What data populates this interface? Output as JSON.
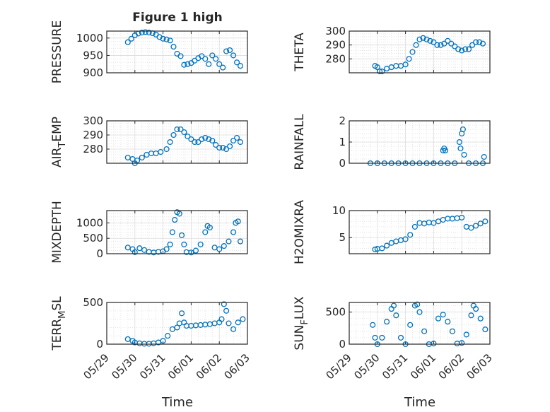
{
  "figure_title": "Figure 1 high",
  "colors": {
    "marker": "#0072BD",
    "axis": "#262626",
    "grid": "#dcdcdc"
  },
  "x_axis": {
    "label": "Time",
    "range": [
      "05/29",
      "06/03"
    ],
    "tick_labels": [
      "05/29",
      "05/30",
      "05/31",
      "06/01",
      "06/02",
      "06/03"
    ]
  },
  "chart_data": [
    {
      "type": "scatter",
      "ylabel": "PRESSURE",
      "ylim": [
        900,
        1020
      ],
      "yticks": [
        900,
        950,
        1000
      ],
      "grid": true,
      "x": [
        "05/29 18:00",
        "05/29 21:00",
        "05/30 00:00",
        "05/30 03:00",
        "05/30 06:00",
        "05/30 09:00",
        "05/30 12:00",
        "05/30 15:00",
        "05/30 18:00",
        "05/30 21:00",
        "05/31 00:00",
        "05/31 03:00",
        "05/31 06:00",
        "05/31 09:00",
        "05/31 12:00",
        "05/31 15:00",
        "05/31 18:00",
        "05/31 21:00",
        "06/01 00:00",
        "06/01 03:00",
        "06/01 06:00",
        "06/01 09:00",
        "06/01 12:00",
        "06/01 15:00",
        "06/01 18:00",
        "06/01 21:00",
        "06/02 00:00",
        "06/02 03:00",
        "06/02 06:00",
        "06/02 09:00",
        "06/02 12:00",
        "06/02 15:00",
        "06/02 18:00"
      ],
      "y": [
        988,
        998,
        1008,
        1013,
        1016,
        1017,
        1016,
        1014,
        1010,
        1003,
        998,
        996,
        993,
        975,
        955,
        948,
        923,
        925,
        928,
        935,
        942,
        948,
        940,
        925,
        950,
        940,
        925,
        915,
        962,
        965,
        950,
        930,
        920
      ]
    },
    {
      "type": "scatter",
      "ylabel": "THETA",
      "ylim": [
        270,
        300
      ],
      "yticks": [
        280,
        290,
        300
      ],
      "grid": true,
      "x": [
        "05/29 22:00",
        "05/30 00:00",
        "05/30 02:00",
        "05/30 04:00",
        "05/30 08:00",
        "05/30 12:00",
        "05/30 16:00",
        "05/30 20:00",
        "05/31 00:00",
        "05/31 03:00",
        "05/31 06:00",
        "05/31 09:00",
        "05/31 12:00",
        "05/31 15:00",
        "05/31 18:00",
        "05/31 21:00",
        "06/01 00:00",
        "06/01 03:00",
        "06/01 06:00",
        "06/01 09:00",
        "06/01 12:00",
        "06/01 15:00",
        "06/01 18:00",
        "06/01 21:00",
        "06/02 00:00",
        "06/02 03:00",
        "06/02 06:00",
        "06/02 09:00",
        "06/02 12:00",
        "06/02 15:00",
        "06/02 18:00"
      ],
      "y": [
        275,
        274,
        271,
        271,
        273,
        274,
        275,
        275,
        276,
        280,
        285,
        290,
        294,
        295,
        294,
        293,
        292,
        290,
        290,
        291,
        293,
        291,
        289,
        287,
        286,
        287,
        287,
        290,
        292,
        292,
        291
      ]
    },
    {
      "type": "scatter",
      "ylabel": "AIR_TEMP",
      "ylim": [
        270,
        300
      ],
      "yticks": [
        280,
        290,
        300
      ],
      "grid": true,
      "x": [
        "05/29 18:00",
        "05/29 22:00",
        "05/30 00:00",
        "05/30 02:00",
        "05/30 06:00",
        "05/30 10:00",
        "05/30 14:00",
        "05/30 18:00",
        "05/30 22:00",
        "05/31 03:00",
        "05/31 06:00",
        "05/31 09:00",
        "05/31 12:00",
        "05/31 15:00",
        "05/31 18:00",
        "05/31 21:00",
        "06/01 00:00",
        "06/01 03:00",
        "06/01 06:00",
        "06/01 09:00",
        "06/01 12:00",
        "06/01 15:00",
        "06/01 18:00",
        "06/01 21:00",
        "06/02 00:00",
        "06/02 03:00",
        "06/02 06:00",
        "06/02 09:00",
        "06/02 12:00",
        "06/02 15:00",
        "06/02 18:00"
      ],
      "y": [
        274,
        273,
        270,
        272,
        274,
        276,
        277,
        277,
        278,
        280,
        285,
        290,
        294,
        294,
        292,
        289,
        287,
        285,
        285,
        287,
        288,
        287,
        286,
        283,
        281,
        281,
        280,
        282,
        286,
        288,
        285
      ]
    },
    {
      "type": "scatter",
      "ylabel": "RAINFALL",
      "ylim": [
        0,
        2
      ],
      "yticks": [
        0,
        1,
        2
      ],
      "grid": true,
      "x": [
        "05/29 18:00",
        "05/30 00:00",
        "05/30 06:00",
        "05/30 12:00",
        "05/30 18:00",
        "05/31 00:00",
        "05/31 06:00",
        "05/31 12:00",
        "05/31 18:00",
        "06/01 00:00",
        "06/01 06:00",
        "06/01 08:00",
        "06/01 09:00",
        "06/01 10:00",
        "06/01 12:00",
        "06/01 18:00",
        "06/01 22:00",
        "06/01 23:00",
        "06/02 00:00",
        "06/02 01:00",
        "06/02 02:00",
        "06/02 06:00",
        "06/02 12:00",
        "06/02 18:00",
        "06/02 19:00"
      ],
      "y": [
        0,
        0,
        0,
        0,
        0,
        0,
        0,
        0,
        0,
        0,
        0,
        0.6,
        0.7,
        0.6,
        0,
        0,
        1.0,
        0.7,
        1.4,
        1.6,
        0.4,
        0,
        0,
        0,
        0.3
      ]
    },
    {
      "type": "scatter",
      "ylabel": "MIXDEPTH",
      "ylim": [
        0,
        1400
      ],
      "yticks": [
        0,
        500,
        1000
      ],
      "grid": true,
      "x": [
        "05/29 18:00",
        "05/29 22:00",
        "05/30 00:00",
        "05/30 04:00",
        "05/30 08:00",
        "05/30 12:00",
        "05/30 16:00",
        "05/30 20:00",
        "05/31 00:00",
        "05/31 03:00",
        "05/31 06:00",
        "05/31 08:00",
        "05/31 10:00",
        "05/31 12:00",
        "05/31 14:00",
        "05/31 16:00",
        "05/31 18:00",
        "05/31 20:00",
        "06/01 00:00",
        "06/01 04:00",
        "06/01 08:00",
        "06/01 12:00",
        "06/01 14:00",
        "06/01 16:00",
        "06/01 20:00",
        "06/02 00:00",
        "06/02 04:00",
        "06/02 08:00",
        "06/02 12:00",
        "06/02 14:00",
        "06/02 16:00",
        "06/02 18:00"
      ],
      "y": [
        200,
        150,
        50,
        180,
        120,
        60,
        40,
        60,
        80,
        150,
        300,
        700,
        1100,
        1350,
        1300,
        600,
        300,
        50,
        40,
        100,
        300,
        700,
        900,
        850,
        200,
        150,
        250,
        400,
        700,
        1000,
        1050,
        400
      ]
    },
    {
      "type": "scatter",
      "ylabel": "H2OMIXRA",
      "ylim": [
        2,
        10
      ],
      "yticks": [
        5,
        10
      ],
      "grid": true,
      "x": [
        "05/29 22:00",
        "05/30 00:00",
        "05/30 04:00",
        "05/30 08:00",
        "05/30 12:00",
        "05/30 16:00",
        "05/30 20:00",
        "05/31 00:00",
        "05/31 04:00",
        "05/31 08:00",
        "05/31 12:00",
        "05/31 16:00",
        "05/31 20:00",
        "06/01 00:00",
        "06/01 04:00",
        "06/01 08:00",
        "06/01 12:00",
        "06/01 16:00",
        "06/01 20:00",
        "06/02 00:00",
        "06/02 04:00",
        "06/02 08:00",
        "06/02 12:00",
        "06/02 16:00",
        "06/02 20:00"
      ],
      "y": [
        2.8,
        2.9,
        3.0,
        3.5,
        4.0,
        4.3,
        4.5,
        4.7,
        5.5,
        7.0,
        7.7,
        7.6,
        7.8,
        7.7,
        8.0,
        8.3,
        8.5,
        8.5,
        8.6,
        8.7,
        7.0,
        6.8,
        7.2,
        7.6,
        8.0
      ]
    },
    {
      "type": "scatter",
      "ylabel": "TERR_MSL",
      "ylim": [
        0,
        500
      ],
      "yticks": [
        0,
        500
      ],
      "grid": true,
      "x": [
        "05/29 18:00",
        "05/29 22:00",
        "05/30 00:00",
        "05/30 04:00",
        "05/30 08:00",
        "05/30 12:00",
        "05/30 16:00",
        "05/30 20:00",
        "05/31 00:00",
        "05/31 04:00",
        "05/31 08:00",
        "05/31 12:00",
        "05/31 14:00",
        "05/31 16:00",
        "05/31 18:00",
        "05/31 20:00",
        "06/01 00:00",
        "06/01 04:00",
        "06/01 08:00",
        "06/01 12:00",
        "06/01 16:00",
        "06/01 20:00",
        "06/02 00:00",
        "06/02 02:00",
        "06/02 04:00",
        "06/02 06:00",
        "06/02 08:00",
        "06/02 12:00",
        "06/02 16:00",
        "06/02 20:00"
      ],
      "y": [
        60,
        40,
        20,
        10,
        5,
        5,
        10,
        20,
        40,
        100,
        180,
        200,
        250,
        370,
        260,
        220,
        220,
        225,
        230,
        235,
        240,
        250,
        260,
        300,
        480,
        400,
        250,
        180,
        260,
        300
      ]
    },
    {
      "type": "scatter",
      "ylabel": "SUN_FLUX",
      "ylim": [
        0,
        650
      ],
      "yticks": [
        0,
        500
      ],
      "grid": true,
      "x": [
        "05/29 20:00",
        "05/29 22:00",
        "05/30 00:00",
        "05/30 04:00",
        "05/30 08:00",
        "05/30 12:00",
        "05/30 14:00",
        "05/30 16:00",
        "05/30 20:00",
        "05/31 00:00",
        "05/31 04:00",
        "05/31 08:00",
        "05/31 10:00",
        "05/31 12:00",
        "05/31 16:00",
        "05/31 20:00",
        "06/01 00:00",
        "06/01 04:00",
        "06/01 08:00",
        "06/01 12:00",
        "06/01 16:00",
        "06/01 20:00",
        "06/02 00:00",
        "06/02 04:00",
        "06/02 08:00",
        "06/02 10:00",
        "06/02 12:00",
        "06/02 16:00",
        "06/02 20:00"
      ],
      "y": [
        300,
        100,
        0,
        100,
        350,
        550,
        600,
        450,
        100,
        0,
        300,
        600,
        620,
        500,
        200,
        0,
        10,
        400,
        460,
        350,
        200,
        10,
        20,
        150,
        450,
        600,
        550,
        400,
        230
      ]
    }
  ]
}
